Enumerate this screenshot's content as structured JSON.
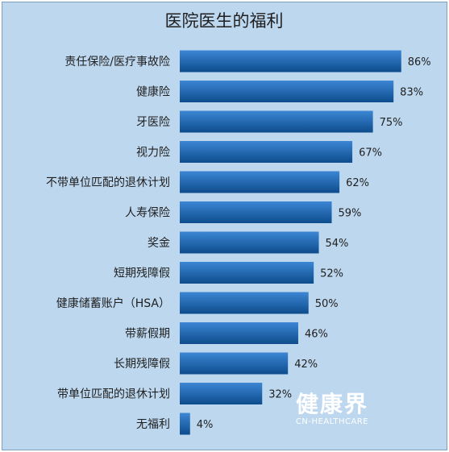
{
  "chart_data": {
    "type": "bar",
    "orientation": "horizontal",
    "title": "医院医生的福利",
    "categories": [
      "责任保险/医疗事故险",
      "健康险",
      "牙医险",
      "视力险",
      "不带单位匹配的退休计划",
      "人寿保险",
      "奖金",
      "短期残障假",
      "健康储蓄账户（HSA）",
      "带薪假期",
      "长期残障假",
      "带单位匹配的退休计划",
      "无福利"
    ],
    "values": [
      86,
      83,
      75,
      67,
      62,
      59,
      54,
      52,
      50,
      46,
      42,
      32,
      4
    ],
    "value_suffix": "%",
    "xlim": [
      0,
      100
    ],
    "grid": false,
    "legend": "none",
    "colors": {
      "bar_top": "#3c86d4",
      "bar_bottom": "#0d4c8c",
      "background": "#bdd7ee"
    }
  },
  "watermark": {
    "main": "健康界",
    "sub": "CN-HEALTHCARE"
  }
}
